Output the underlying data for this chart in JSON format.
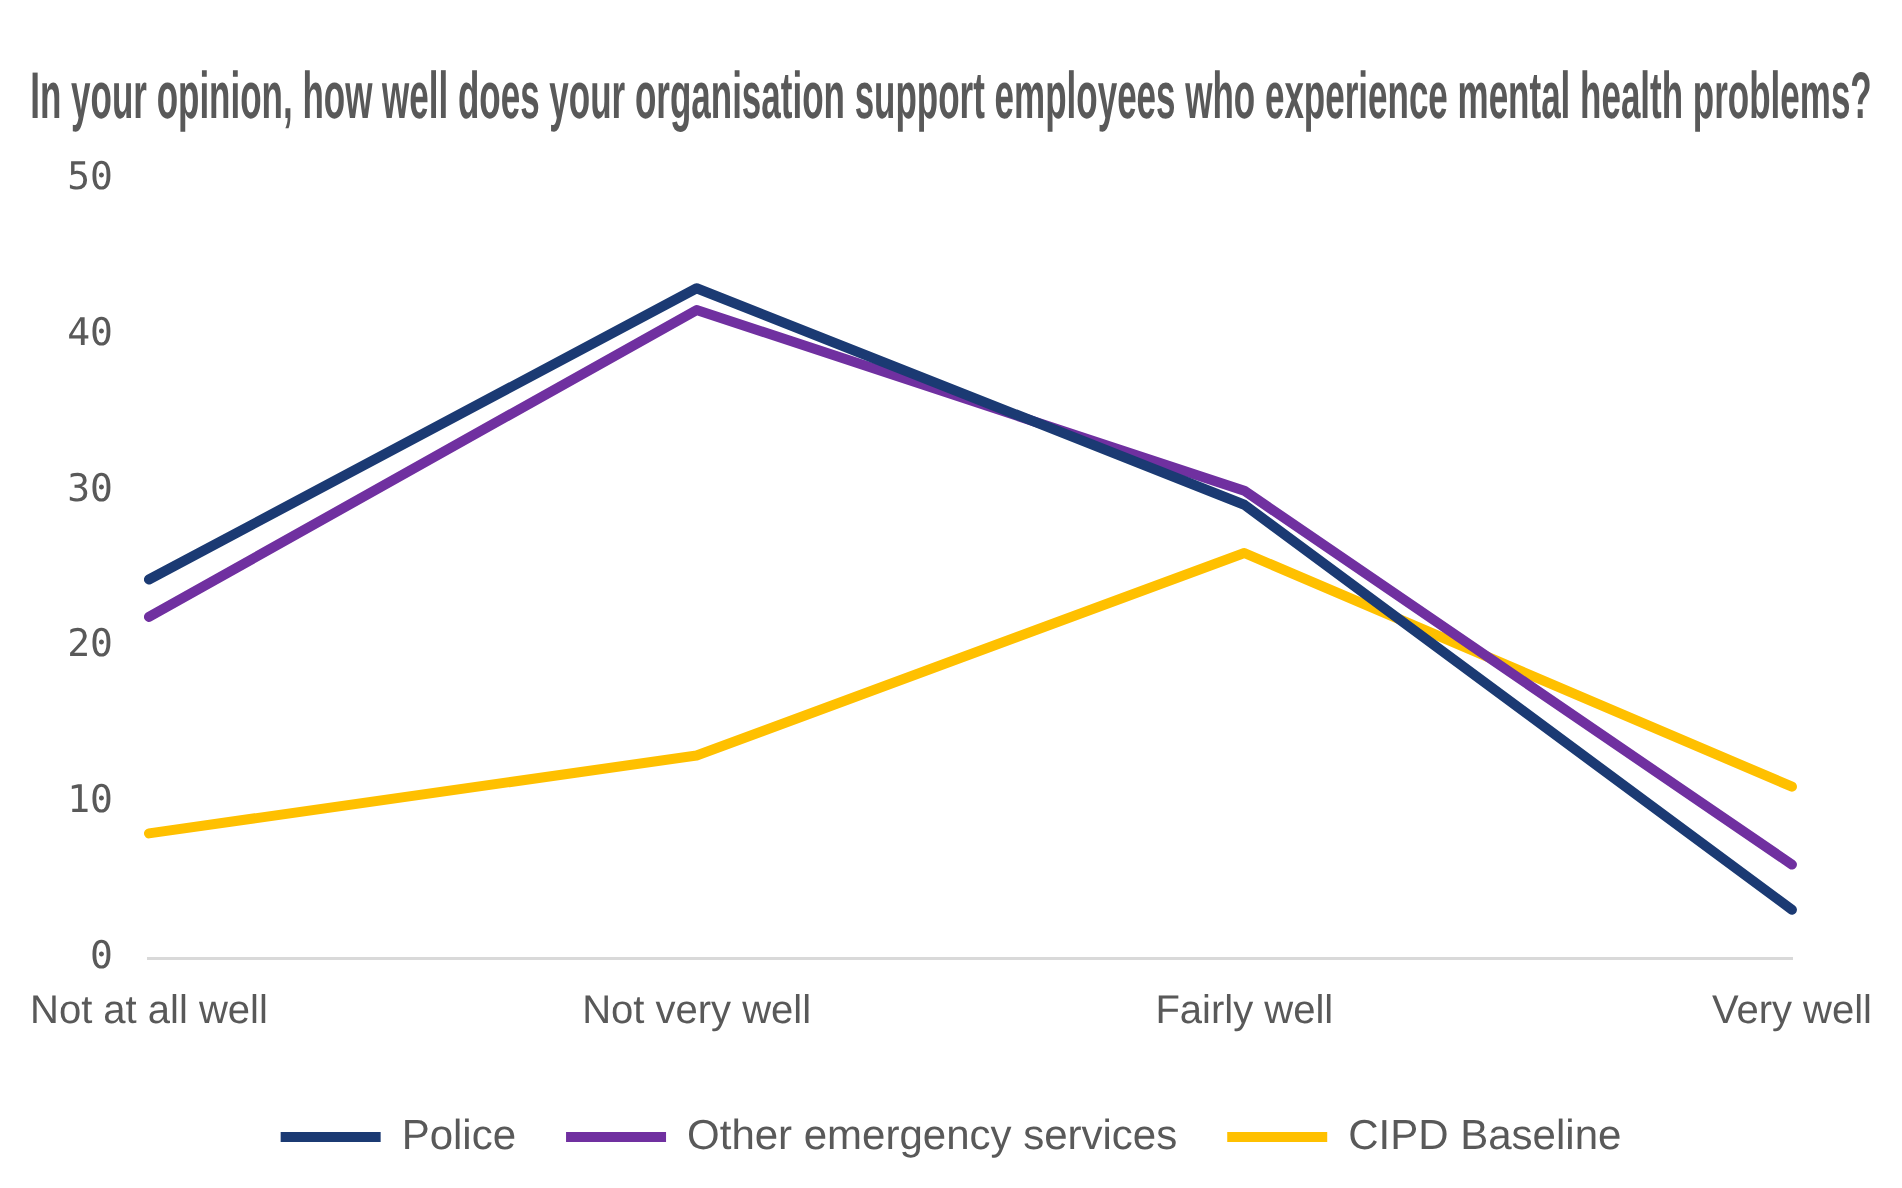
{
  "chart_data": {
    "type": "line",
    "title": "In your opinion, how well does your organisation support employees who experience mental health problems?",
    "categories": [
      "Not at all well",
      "Not very well",
      "Fairly well",
      "Very well"
    ],
    "series": [
      {
        "name": "Police",
        "color": "#1b3a73",
        "values": [
          24.3,
          43,
          29.1,
          3.1
        ]
      },
      {
        "name": "Other emergency services",
        "color": "#7030a0",
        "values": [
          21.9,
          41.6,
          30,
          6
        ]
      },
      {
        "name": "CIPD Baseline",
        "color": "#ffc000",
        "values": [
          8,
          13,
          26,
          11
        ]
      }
    ],
    "ylim": [
      0,
      50
    ],
    "yticks": [
      0,
      10,
      20,
      30,
      40,
      50
    ],
    "grid": false,
    "legend": "bottom",
    "marker": "none",
    "line_style": "solid"
  }
}
